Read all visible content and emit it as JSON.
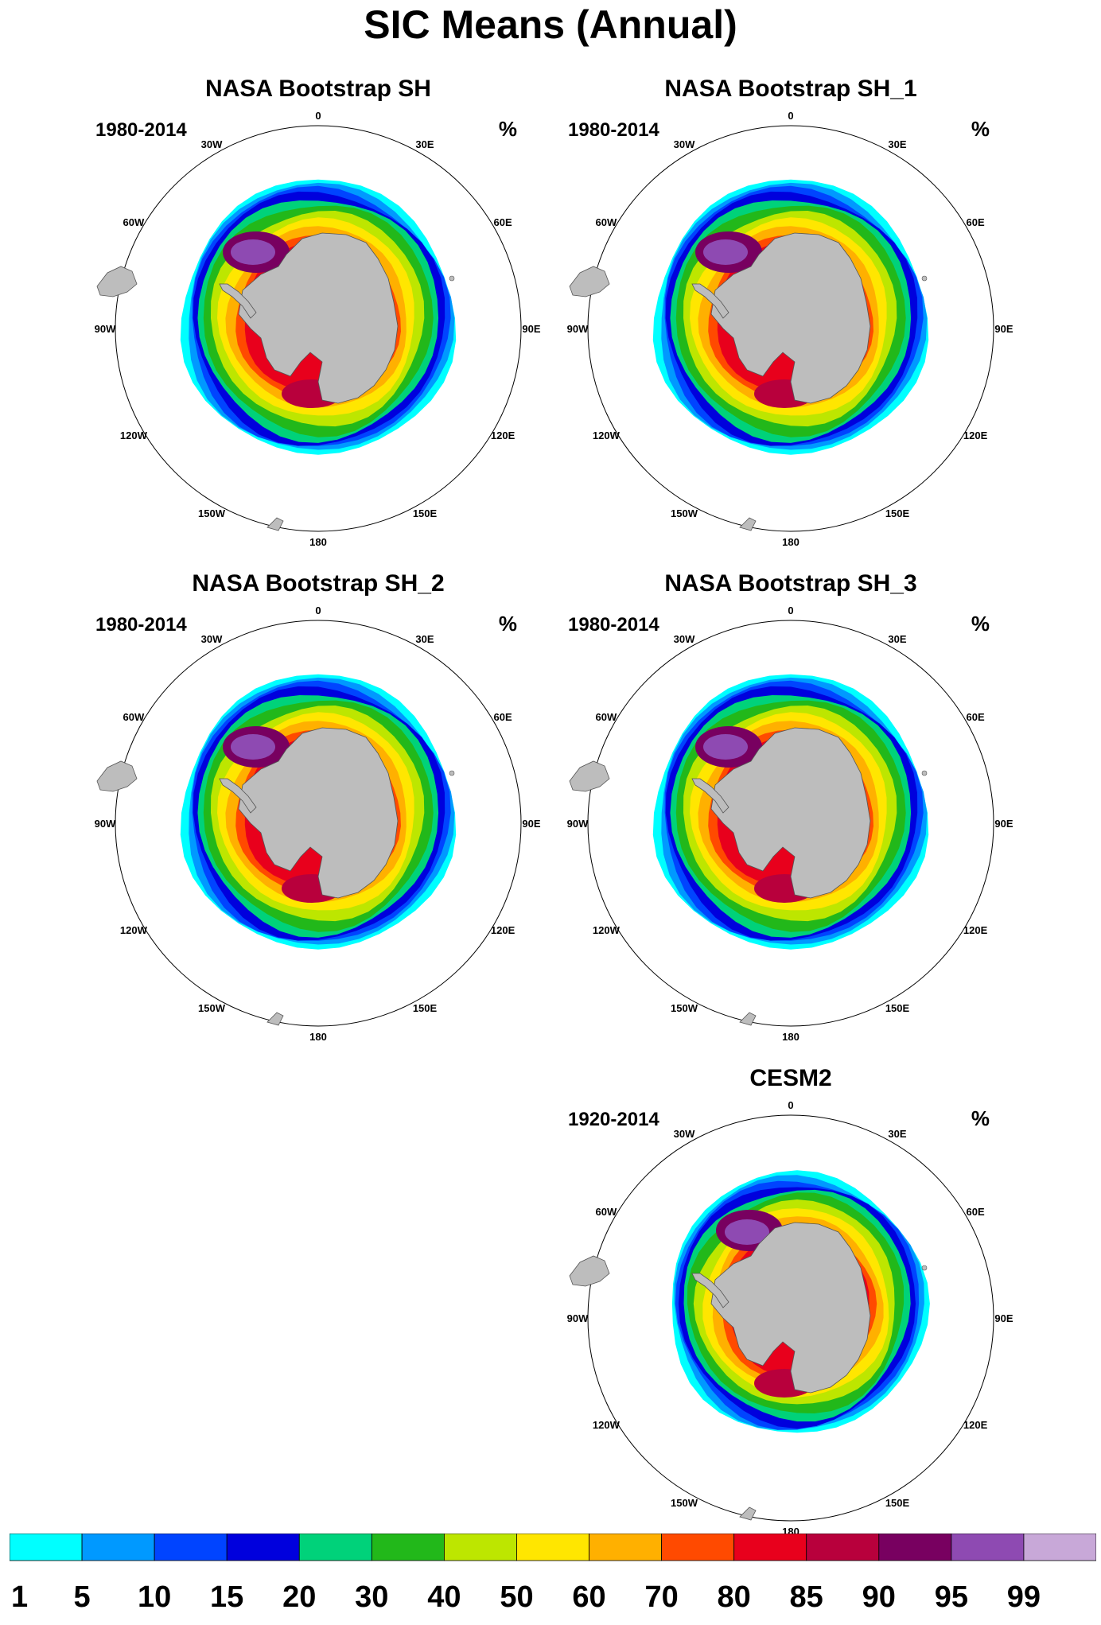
{
  "title": "SIC Means (Annual)",
  "units": "%",
  "lon_labels": [
    "0",
    "30E",
    "60E",
    "90E",
    "120E",
    "150E",
    "180",
    "150W",
    "120W",
    "90W",
    "60W",
    "30W"
  ],
  "panels": [
    {
      "title": "NASA Bootstrap SH",
      "period": "1980-2014",
      "model": false
    },
    {
      "title": "NASA Bootstrap SH_1",
      "period": "1980-2014",
      "model": false
    },
    {
      "title": "NASA Bootstrap SH_2",
      "period": "1980-2014",
      "model": false
    },
    {
      "title": "NASA Bootstrap SH_3",
      "period": "1980-2014",
      "model": false
    },
    {
      "title": "CESM2",
      "period": "1920-2014",
      "model": true
    }
  ],
  "colorbar": {
    "labels": [
      "1",
      "5",
      "10",
      "15",
      "20",
      "30",
      "40",
      "50",
      "60",
      "70",
      "80",
      "85",
      "90",
      "95",
      "99"
    ],
    "colors": [
      "#00ffff",
      "#0099ff",
      "#0044ff",
      "#0000dd",
      "#00d27a",
      "#22b81a",
      "#bde600",
      "#ffe600",
      "#ffb000",
      "#ff4a00",
      "#e8001c",
      "#b8003c",
      "#780060",
      "#8e4ab2",
      "#c8a8d8"
    ]
  },
  "land_color": "#bdbdbd"
}
